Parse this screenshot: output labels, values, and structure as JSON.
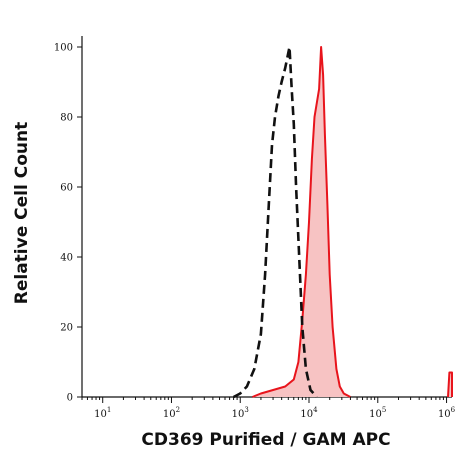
{
  "chart_data": {
    "type": "area",
    "xlabel": "CD369 Purified / GAM APC",
    "ylabel": "Relative Cell Count",
    "x_scale": "log",
    "xlim": [
      5,
      1200000
    ],
    "ylim": [
      0,
      100
    ],
    "x_ticks": [
      {
        "value": 10,
        "base": "10",
        "exp": "1"
      },
      {
        "value": 100,
        "base": "10",
        "exp": "2"
      },
      {
        "value": 1000,
        "base": "10",
        "exp": "3"
      },
      {
        "value": 10000,
        "base": "10",
        "exp": "4"
      },
      {
        "value": 100000,
        "base": "10",
        "exp": "5"
      },
      {
        "value": 1000000,
        "base": "10",
        "exp": "6"
      }
    ],
    "y_ticks": [
      "0",
      "20",
      "40",
      "60",
      "80",
      "100"
    ],
    "grid": false,
    "series": [
      {
        "style": "dashed",
        "color": "#111111",
        "fill": "none",
        "points": [
          [
            800,
            0
          ],
          [
            1000,
            1
          ],
          [
            1250,
            3
          ],
          [
            1600,
            8
          ],
          [
            2000,
            18
          ],
          [
            2300,
            35
          ],
          [
            2600,
            55
          ],
          [
            2900,
            72
          ],
          [
            3200,
            80
          ],
          [
            3600,
            86
          ],
          [
            4000,
            90
          ],
          [
            4500,
            94
          ],
          [
            5200,
            100
          ],
          [
            5600,
            88
          ],
          [
            6000,
            78
          ],
          [
            6500,
            60
          ],
          [
            7200,
            40
          ],
          [
            8000,
            20
          ],
          [
            9000,
            8
          ],
          [
            10500,
            2
          ],
          [
            13000,
            0
          ]
        ]
      },
      {
        "style": "solid",
        "color": "#e8141c",
        "fill": "#f7c3c3",
        "points": [
          [
            1500,
            0
          ],
          [
            2000,
            1
          ],
          [
            3000,
            2
          ],
          [
            4500,
            3
          ],
          [
            6000,
            5
          ],
          [
            7000,
            10
          ],
          [
            8000,
            22
          ],
          [
            9000,
            35
          ],
          [
            10000,
            50
          ],
          [
            11000,
            68
          ],
          [
            12000,
            80
          ],
          [
            13000,
            84
          ],
          [
            14000,
            88
          ],
          [
            15000,
            100
          ],
          [
            16000,
            92
          ],
          [
            17000,
            75
          ],
          [
            18500,
            55
          ],
          [
            20000,
            35
          ],
          [
            22000,
            20
          ],
          [
            25000,
            8
          ],
          [
            28000,
            3
          ],
          [
            32000,
            1
          ],
          [
            40000,
            0
          ]
        ]
      },
      {
        "style": "solid",
        "color": "#e8141c",
        "fill": "#f7c3c3",
        "points": [
          [
            1050000,
            0
          ],
          [
            1100000,
            7
          ],
          [
            1200000,
            7
          ],
          [
            1200000,
            0
          ]
        ]
      }
    ]
  }
}
